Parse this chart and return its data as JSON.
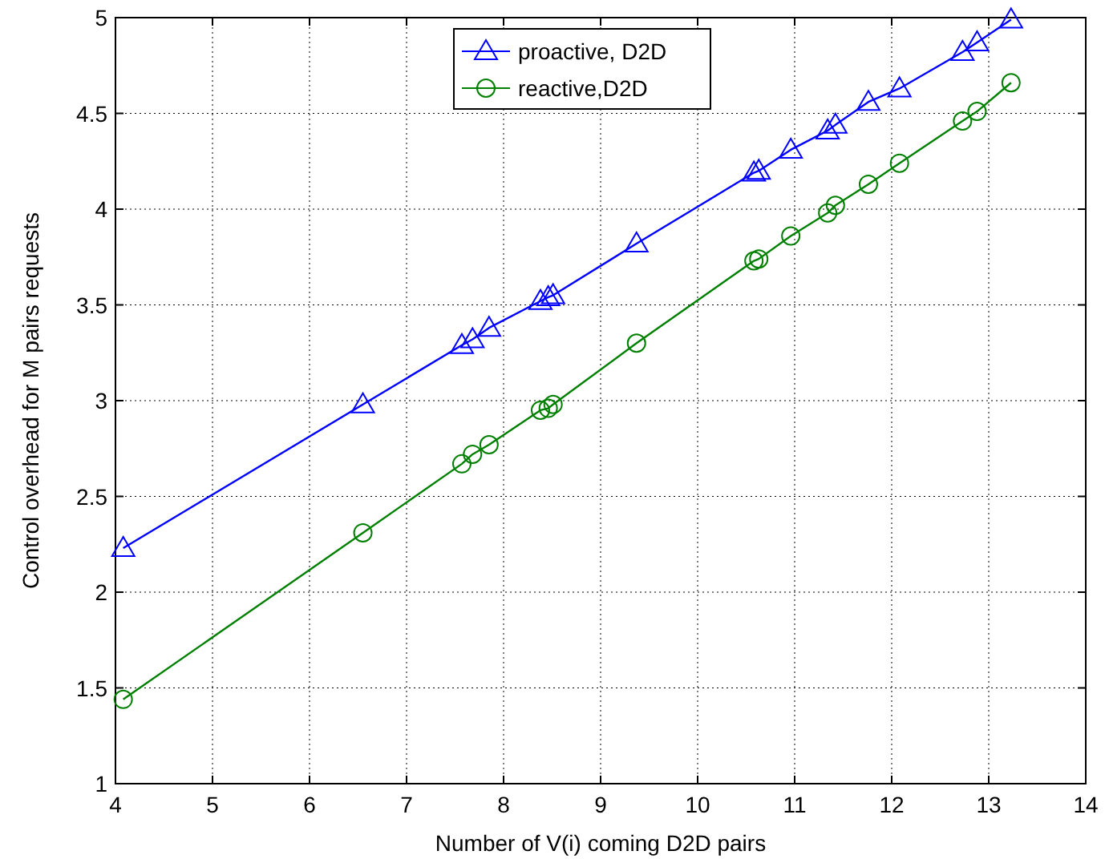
{
  "chart_data": {
    "type": "line",
    "xlabel": "Number of V(i) coming D2D pairs",
    "ylabel": "Control overhead for M pairs requests",
    "x": [
      4.08,
      6.55,
      7.57,
      7.68,
      7.85,
      8.38,
      8.46,
      8.51,
      9.37,
      10.58,
      10.63,
      10.96,
      11.34,
      11.42,
      11.76,
      12.08,
      12.73,
      12.88,
      13.23
    ],
    "series": [
      {
        "name": "proactive, D2D",
        "color": "#0000ff",
        "marker": "triangle",
        "values": [
          2.23,
          2.98,
          3.29,
          3.32,
          3.38,
          3.52,
          3.54,
          3.55,
          3.82,
          4.19,
          4.2,
          4.31,
          4.41,
          4.44,
          4.56,
          4.63,
          4.82,
          4.87,
          4.99
        ]
      },
      {
        "name": "reactive,D2D",
        "color": "#008000",
        "marker": "circle",
        "values": [
          1.44,
          2.31,
          2.67,
          2.72,
          2.77,
          2.95,
          2.96,
          2.98,
          3.3,
          3.73,
          3.74,
          3.86,
          3.98,
          4.02,
          4.13,
          4.24,
          4.46,
          4.51,
          4.66
        ]
      }
    ],
    "xlim": [
      4,
      14
    ],
    "xticks": [
      4,
      5,
      6,
      7,
      8,
      9,
      10,
      11,
      12,
      13,
      14
    ],
    "ylim": [
      1,
      5
    ],
    "yticks": [
      1,
      1.5,
      2,
      2.5,
      3,
      3.5,
      4,
      4.5,
      5
    ],
    "grid": true,
    "legend": "top"
  }
}
